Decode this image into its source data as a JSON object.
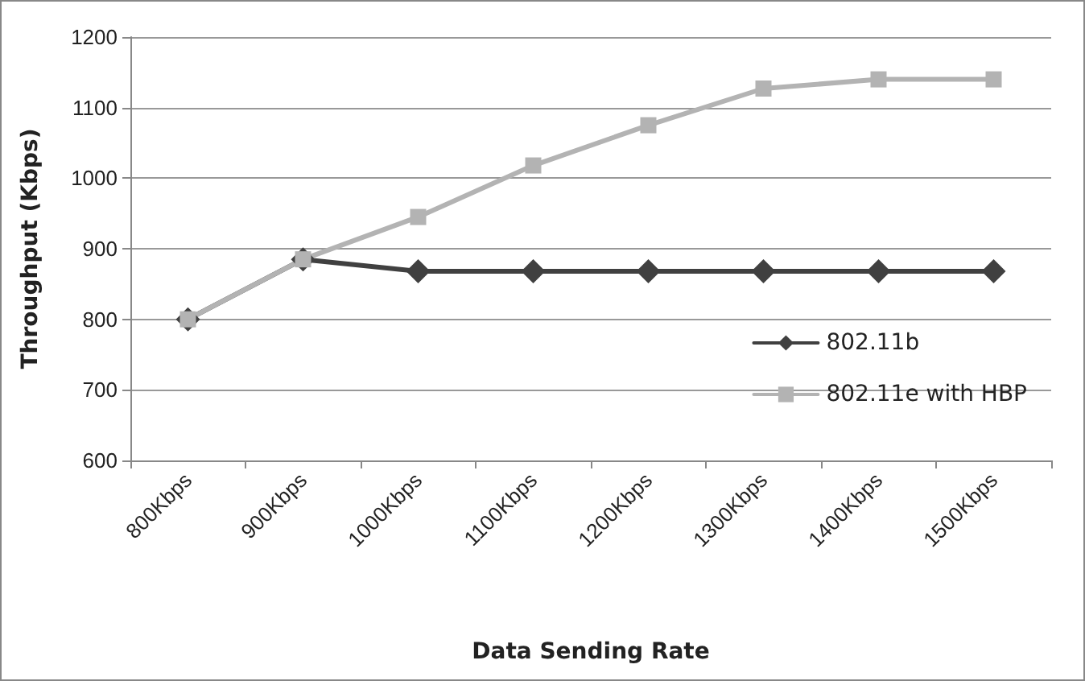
{
  "chart_data": {
    "type": "line",
    "xlabel": "Data Sending Rate",
    "ylabel": "Throughput (Kbps)",
    "categories": [
      "800Kbps",
      "900Kbps",
      "1000Kbps",
      "1100Kbps",
      "1200Kbps",
      "1300Kbps",
      "1400Kbps",
      "1500Kbps"
    ],
    "series": [
      {
        "name": "802.11b",
        "color": "#404040",
        "marker": "diamond",
        "values": [
          800,
          885,
          868,
          868,
          868,
          868,
          868,
          868
        ]
      },
      {
        "name": "802.11e with HBP",
        "color": "#b3b3b3",
        "marker": "square",
        "values": [
          800,
          885,
          945,
          1018,
          1075,
          1127,
          1140,
          1140
        ]
      }
    ],
    "ylim": [
      600,
      1200
    ],
    "yticks": [
      600,
      700,
      800,
      900,
      1000,
      1100,
      1200
    ],
    "grid": "y",
    "legend": "right"
  }
}
